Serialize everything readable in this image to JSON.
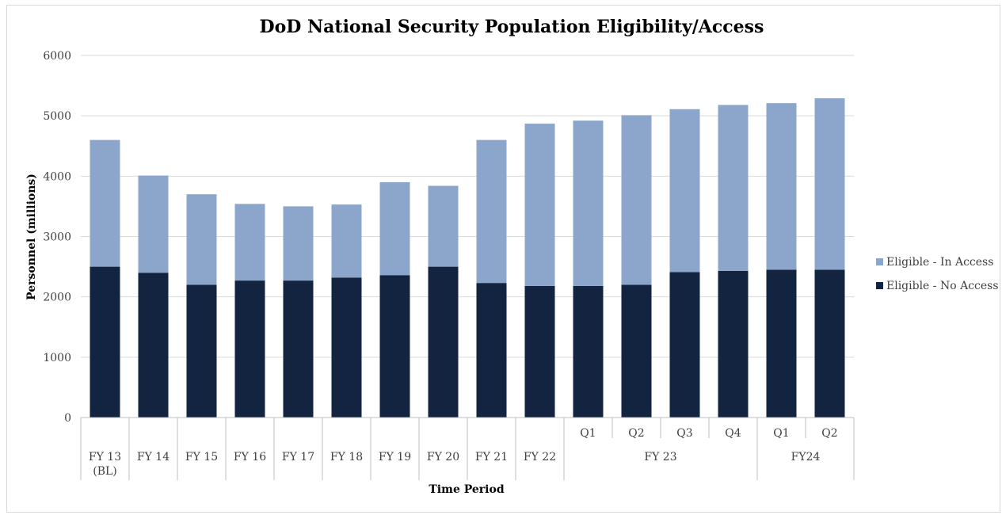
{
  "chart_data": {
    "type": "bar",
    "stacked": true,
    "title": "DoD National Security Population Eligibility/Access",
    "ylabel": "Personnel (millions)",
    "xlabel": "Time Period",
    "ylim": [
      0,
      6000
    ],
    "y_ticks": [
      0,
      1000,
      2000,
      3000,
      4000,
      5000,
      6000
    ],
    "grid": true,
    "legend_position": "right",
    "categories": [
      "FY 13 (BL)",
      "FY 14",
      "FY 15",
      "FY 16",
      "FY 17",
      "FY 18",
      "FY 19",
      "FY 20",
      "FY 21",
      "FY 22",
      "Q1",
      "Q2",
      "Q3",
      "Q4",
      "Q1",
      "Q2"
    ],
    "category_labels": [
      [
        "FY 13",
        "(BL)"
      ],
      [
        "FY 14"
      ],
      [
        "FY 15"
      ],
      [
        "FY 16"
      ],
      [
        "FY 17"
      ],
      [
        "FY 18"
      ],
      [
        "FY 19"
      ],
      [
        "FY 20"
      ],
      [
        "FY 21"
      ],
      [
        "FY 22"
      ],
      [
        "Q1"
      ],
      [
        "Q2"
      ],
      [
        "Q3"
      ],
      [
        "Q4"
      ],
      [
        "Q1"
      ],
      [
        "Q2"
      ]
    ],
    "groups": [
      {
        "label": "FY 23",
        "start": 10,
        "end": 13
      },
      {
        "label": "FY24",
        "start": 14,
        "end": 15
      }
    ],
    "series": [
      {
        "name": "Eligible - No Access",
        "color": "#12243f",
        "values": [
          2500,
          2400,
          2200,
          2270,
          2270,
          2320,
          2360,
          2500,
          2230,
          2180,
          2180,
          2200,
          2410,
          2430,
          2450,
          2450
        ]
      },
      {
        "name": "Eligible - In Access",
        "color": "#8ca6cb",
        "values": [
          2100,
          1610,
          1500,
          1270,
          1230,
          1210,
          1540,
          1340,
          2370,
          2690,
          2740,
          2810,
          2700,
          2750,
          2760,
          2840
        ]
      }
    ],
    "legend_order": [
      "Eligible - In Access",
      "Eligible - No Access"
    ]
  },
  "colors": {
    "grid": "#d9d9d9",
    "axis": "#bfbfbf",
    "text": "#404040",
    "title": "#000000"
  }
}
